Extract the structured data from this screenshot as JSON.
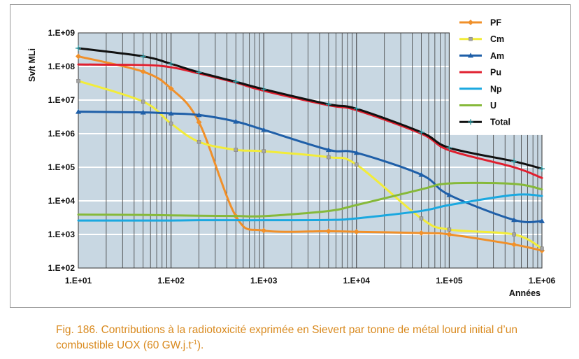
{
  "chart_data": {
    "type": "line",
    "xscale": "log",
    "yscale": "log",
    "xlim": [
      10,
      1000000
    ],
    "ylim": [
      100,
      1000000000
    ],
    "xlabel": "Années",
    "ylabel": "Sv/t MLi",
    "xticks": [
      "1.E+01",
      "1.E+02",
      "1.E+03",
      "1.E+04",
      "1.E+05",
      "1.E+06"
    ],
    "yticks": [
      "1.E+02",
      "1.E+03",
      "1.E+04",
      "1.E+05",
      "1.E+06",
      "1.E+07",
      "1.E+08",
      "1.E+09"
    ],
    "grid": true,
    "legend_position": "top-right",
    "series": [
      {
        "name": "PF",
        "color": "#f0902a",
        "marker": "diamond",
        "points": [
          [
            10,
            200000000
          ],
          [
            50,
            70000000
          ],
          [
            100,
            22000000
          ],
          [
            200,
            2200000
          ],
          [
            500,
            3500
          ],
          [
            1000,
            1300
          ],
          [
            5000,
            1250
          ],
          [
            10000,
            1200
          ],
          [
            50000,
            1100
          ],
          [
            100000,
            1000
          ],
          [
            500000,
            500
          ],
          [
            1000000,
            330
          ]
        ]
      },
      {
        "name": "Cm",
        "color": "#f2ec3a",
        "marker": "square",
        "points": [
          [
            10,
            37000000
          ],
          [
            50,
            9000000
          ],
          [
            100,
            2000000
          ],
          [
            200,
            570000
          ],
          [
            500,
            330000
          ],
          [
            1000,
            300000
          ],
          [
            5000,
            200000
          ],
          [
            10000,
            120000
          ],
          [
            50000,
            3000
          ],
          [
            100000,
            1400
          ],
          [
            500000,
            1000
          ],
          [
            1000000,
            380
          ]
        ]
      },
      {
        "name": "Am",
        "color": "#1f5fa8",
        "marker": "triangle",
        "points": [
          [
            10,
            4500000
          ],
          [
            50,
            4300000
          ],
          [
            100,
            4000000
          ],
          [
            200,
            3600000
          ],
          [
            500,
            2300000
          ],
          [
            1000,
            1300000
          ],
          [
            5000,
            330000
          ],
          [
            10000,
            270000
          ],
          [
            50000,
            60000
          ],
          [
            100000,
            15000
          ],
          [
            500000,
            2700
          ],
          [
            1000000,
            2500
          ]
        ]
      },
      {
        "name": "Pu",
        "color": "#e01f2e",
        "marker": "none",
        "points": [
          [
            10,
            115000000
          ],
          [
            50,
            110000000
          ],
          [
            100,
            95000000
          ],
          [
            200,
            62000000
          ],
          [
            500,
            33000000
          ],
          [
            1000,
            19000000
          ],
          [
            5000,
            7000000
          ],
          [
            10000,
            5000000
          ],
          [
            50000,
            1000000
          ],
          [
            100000,
            320000
          ],
          [
            500000,
            100000
          ],
          [
            1000000,
            48000
          ]
        ]
      },
      {
        "name": "Np",
        "color": "#1aa8e0",
        "marker": "none",
        "points": [
          [
            10,
            2600
          ],
          [
            50,
            2600
          ],
          [
            100,
            2600
          ],
          [
            200,
            2650
          ],
          [
            500,
            2650
          ],
          [
            1000,
            2650
          ],
          [
            5000,
            2700
          ],
          [
            10000,
            3000
          ],
          [
            50000,
            5000
          ],
          [
            100000,
            7500
          ],
          [
            500000,
            15000
          ],
          [
            1000000,
            14000
          ]
        ]
      },
      {
        "name": "U",
        "color": "#86b93a",
        "marker": "none",
        "points": [
          [
            10,
            3900
          ],
          [
            50,
            3800
          ],
          [
            100,
            3700
          ],
          [
            200,
            3600
          ],
          [
            500,
            3550
          ],
          [
            1000,
            3500
          ],
          [
            5000,
            5000
          ],
          [
            10000,
            7500
          ],
          [
            50000,
            22000
          ],
          [
            100000,
            33000
          ],
          [
            500000,
            32000
          ],
          [
            1000000,
            22000
          ]
        ]
      },
      {
        "name": "Total",
        "color": "#111111",
        "marker": "plus",
        "points": [
          [
            10,
            350000000
          ],
          [
            50,
            200000000
          ],
          [
            100,
            120000000
          ],
          [
            200,
            67000000
          ],
          [
            500,
            35000000
          ],
          [
            1000,
            21000000
          ],
          [
            5000,
            7500000
          ],
          [
            10000,
            5500000
          ],
          [
            50000,
            1100000
          ],
          [
            100000,
            380000
          ],
          [
            500000,
            150000
          ],
          [
            1000000,
            90000
          ]
        ]
      }
    ]
  },
  "caption": {
    "text": "Fig. 186. Contributions à la radiotoxicité exprimée en Sievert par tonne de métal lourd initial d’un combustible UOX (60 GW.j.t",
    "sup": "-1",
    "end": ")."
  }
}
